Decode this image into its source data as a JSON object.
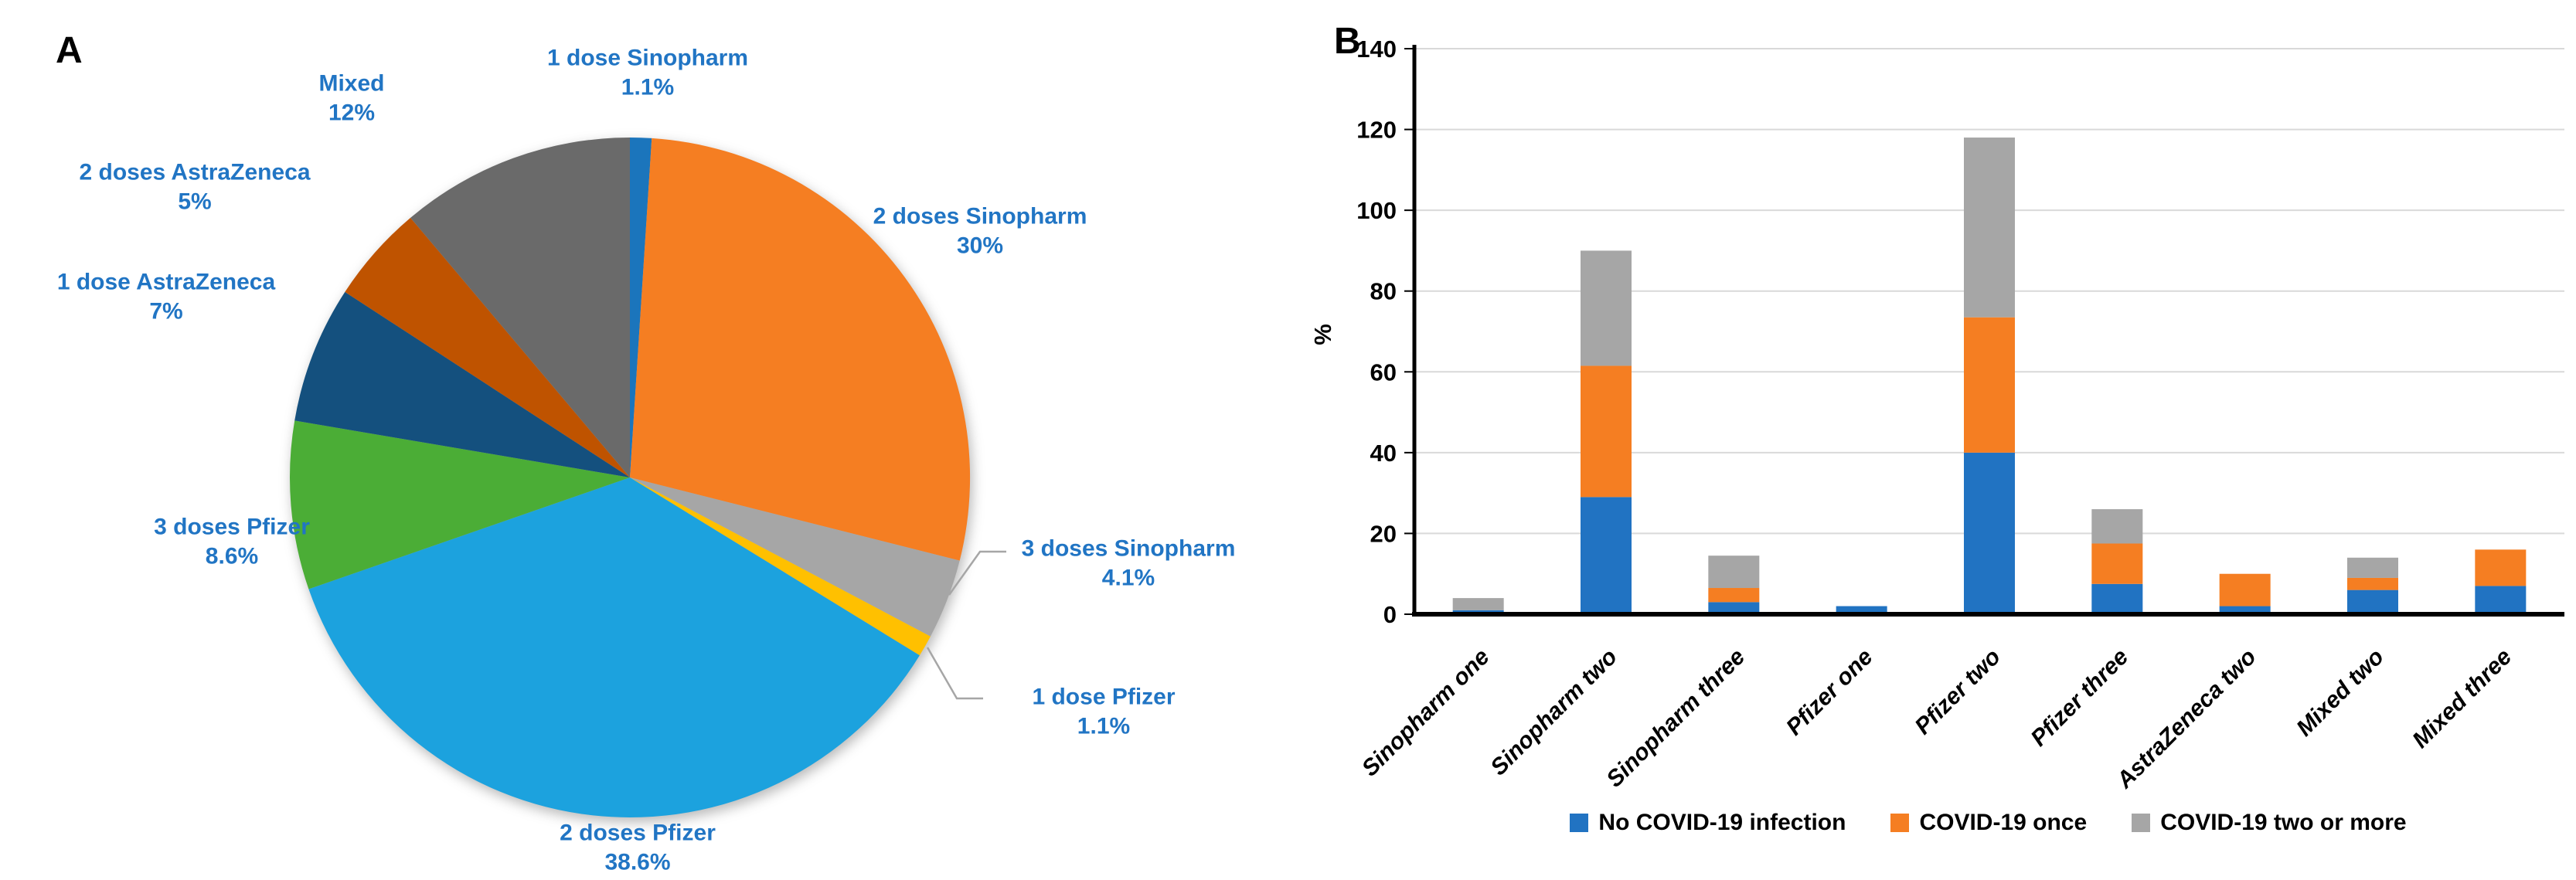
{
  "figure": {
    "panel_a_label": "A",
    "panel_b_label": "B",
    "background": "#FFFFFF",
    "pie_label_color": "#2175C4"
  },
  "chart_data": [
    {
      "panel": "A",
      "type": "pie",
      "legend": "none",
      "labels_outside": true,
      "slices": [
        {
          "name": "1 dose Sinopharm",
          "value": 1.1,
          "label": "1.1%",
          "color": "#1B75BC"
        },
        {
          "name": "2 doses Sinopharm",
          "value": 30,
          "label": "30%",
          "color": "#F57E22"
        },
        {
          "name": "3 doses Sinopharm",
          "value": 4.1,
          "label": "4.1%",
          "color": "#A6A6A6"
        },
        {
          "name": "1 dose Pfizer",
          "value": 1.1,
          "label": "1.1%",
          "color": "#FFC000"
        },
        {
          "name": "2 doses Pfizer",
          "value": 38.6,
          "label": "38.6%",
          "color": "#1CA2DE"
        },
        {
          "name": "3 doses Pfizer",
          "value": 8.6,
          "label": "8.6%",
          "color": "#4BAD36"
        },
        {
          "name": "1 dose AstraZeneca",
          "value": 7,
          "label": "7%",
          "color": "#14507E"
        },
        {
          "name": "2 doses AstraZeneca",
          "value": 5,
          "label": "5%",
          "color": "#BF5300"
        },
        {
          "name": "Mixed",
          "value": 12,
          "label": "12%",
          "color": "#6A6A6A"
        }
      ]
    },
    {
      "panel": "B",
      "type": "bar",
      "stacked": true,
      "ylabel": "%",
      "ylim": [
        0,
        140
      ],
      "yticks": [
        0,
        20,
        40,
        60,
        80,
        100,
        120,
        140
      ],
      "grid": true,
      "legend_position": "bottom",
      "categories": [
        "Sinopharm one",
        "Sinopharm two",
        "Sinopharm three",
        "Pfizer one",
        "Pfizer two",
        "Pfizer three",
        "AstraZeneca two",
        "Mixed two",
        "Mixed three"
      ],
      "series": [
        {
          "name": "No COVID-19 infection",
          "color": "#2173C2",
          "values": [
            1,
            29,
            3,
            2,
            40,
            7.5,
            2,
            6,
            7
          ]
        },
        {
          "name": "COVID-19 once",
          "color": "#F57E22",
          "values": [
            0,
            32.5,
            3.5,
            0,
            33.5,
            10,
            8,
            3,
            9
          ]
        },
        {
          "name": "COVID-19 two or more",
          "color": "#A6A6A6",
          "values": [
            3,
            28.5,
            8,
            0,
            44.5,
            8.5,
            0,
            5,
            0
          ]
        }
      ]
    }
  ]
}
